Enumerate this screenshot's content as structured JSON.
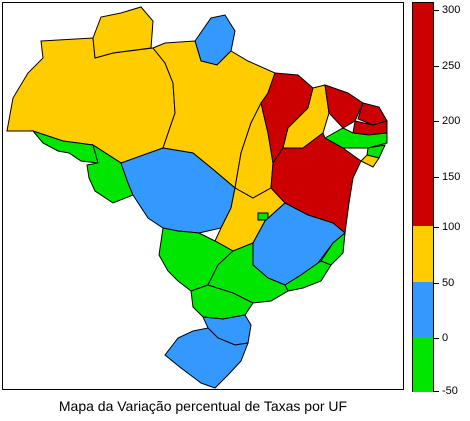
{
  "caption": "Mapa da Variação percentual de Taxas por UF",
  "legend": {
    "range": [
      -50,
      300
    ],
    "ticks": [
      "300",
      "250",
      "200",
      "150",
      "100",
      "50",
      "0",
      "-50"
    ],
    "bins": [
      {
        "from": -50,
        "to": 0,
        "color": "#00e600"
      },
      {
        "from": 0,
        "to": 50,
        "color": "#3399ff"
      },
      {
        "from": 50,
        "to": 100,
        "color": "#ffcc00"
      },
      {
        "from": 100,
        "to": 300,
        "color": "#cc0000"
      }
    ]
  },
  "colors": {
    "green": "#00e600",
    "blue": "#3399ff",
    "yellow": "#ffcc00",
    "red": "#cc0000",
    "border": "#000000"
  }
}
